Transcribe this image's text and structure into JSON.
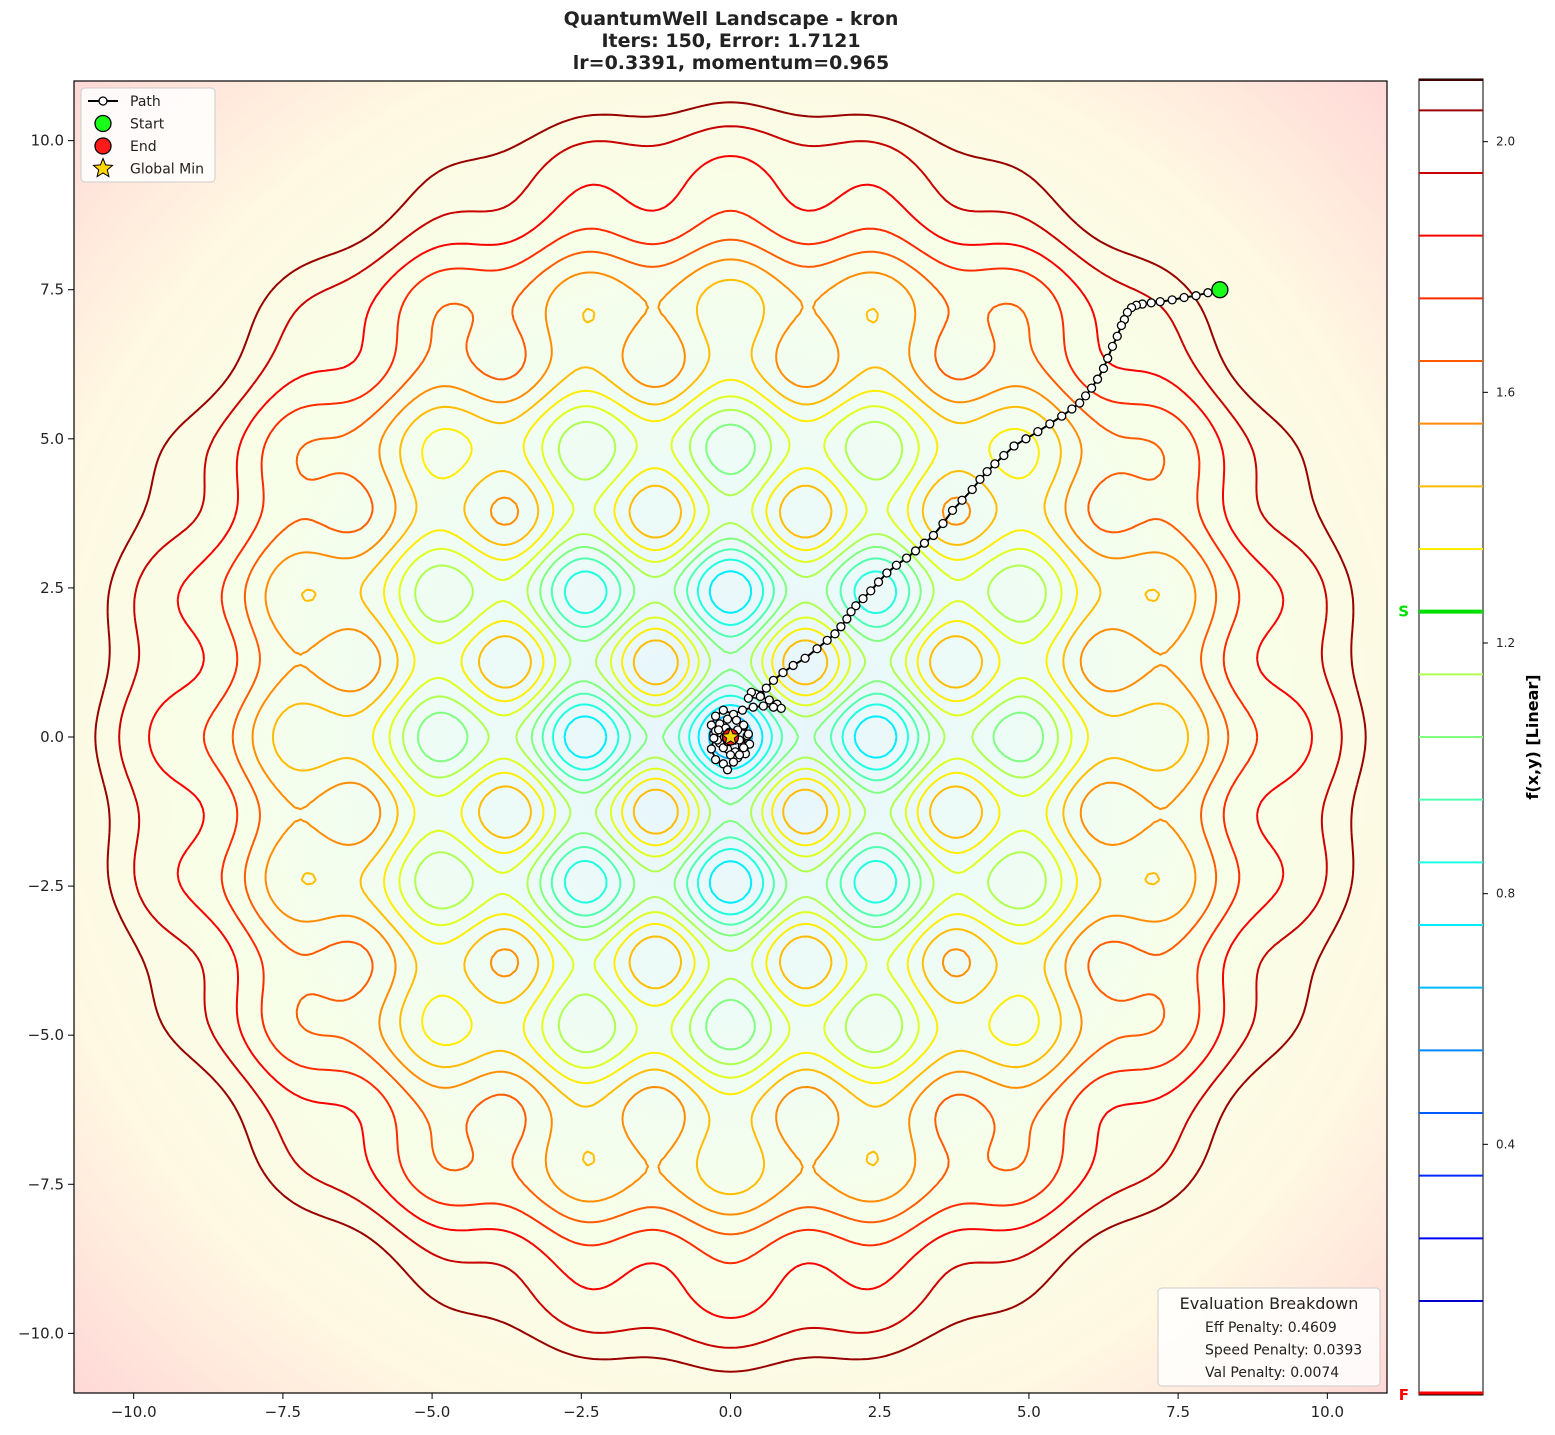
{
  "chart_data": {
    "type": "contour",
    "title_lines": [
      "QuantumWell Landscape - kron",
      "Iters: 150, Error: 1.7121",
      "lr=0.3391, momentum=0.965"
    ],
    "xlim": [
      -11,
      11
    ],
    "ylim": [
      -11,
      11
    ],
    "x_ticks": [
      -10,
      -7.5,
      -5,
      -2.5,
      0,
      2.5,
      5,
      7.5,
      10
    ],
    "y_ticks": [
      -10,
      -7.5,
      -5,
      -2.5,
      0,
      2.5,
      5,
      7.5,
      10
    ],
    "x_tick_labels": [
      "−10.0",
      "−7.5",
      "−5.0",
      "−2.5",
      "0.0",
      "2.5",
      "5.0",
      "7.5",
      "10.0"
    ],
    "y_tick_labels": [
      "−10.0",
      "−7.5",
      "−5.0",
      "−2.5",
      "0.0",
      "2.5",
      "5.0",
      "7.5",
      "10.0"
    ],
    "grid": false,
    "colormap": "jet",
    "colorbar": {
      "label": "f(x,y) [Linear]",
      "range": [
        0.0,
        2.1
      ],
      "ticks": [
        0.4,
        0.8,
        1.2,
        1.6,
        2.0
      ],
      "tick_labels": [
        "0.4",
        "0.8",
        "1.2",
        "1.6",
        "2.0"
      ],
      "start_marker": {
        "label": "S",
        "value": 1.25,
        "color": "#00e000"
      },
      "final_marker": {
        "label": "F",
        "value": 0.0,
        "color": "#ff0000"
      }
    },
    "legend": {
      "placement": "upper-left",
      "entries": [
        {
          "label": "Path",
          "kind": "path"
        },
        {
          "label": "Start",
          "kind": "start"
        },
        {
          "label": "End",
          "kind": "end"
        },
        {
          "label": "Global Min",
          "kind": "star"
        }
      ]
    },
    "start": [
      8.2,
      7.5
    ],
    "end": [
      0.0,
      0.0
    ],
    "global_min": [
      0.0,
      0.0
    ],
    "path": [
      [
        8.2,
        7.5
      ],
      [
        8.0,
        7.45
      ],
      [
        7.8,
        7.4
      ],
      [
        7.6,
        7.37
      ],
      [
        7.4,
        7.33
      ],
      [
        7.2,
        7.3
      ],
      [
        7.05,
        7.28
      ],
      [
        6.9,
        7.26
      ],
      [
        6.8,
        7.24
      ],
      [
        6.72,
        7.2
      ],
      [
        6.65,
        7.12
      ],
      [
        6.6,
        7.0
      ],
      [
        6.55,
        6.9
      ],
      [
        6.48,
        6.72
      ],
      [
        6.4,
        6.55
      ],
      [
        6.32,
        6.35
      ],
      [
        6.25,
        6.18
      ],
      [
        6.15,
        6.0
      ],
      [
        6.05,
        5.85
      ],
      [
        5.95,
        5.72
      ],
      [
        5.85,
        5.6
      ],
      [
        5.72,
        5.5
      ],
      [
        5.55,
        5.38
      ],
      [
        5.35,
        5.25
      ],
      [
        5.15,
        5.12
      ],
      [
        4.95,
        5.0
      ],
      [
        4.75,
        4.88
      ],
      [
        4.58,
        4.72
      ],
      [
        4.43,
        4.58
      ],
      [
        4.3,
        4.45
      ],
      [
        4.18,
        4.32
      ],
      [
        4.05,
        4.15
      ],
      [
        3.88,
        3.97
      ],
      [
        3.72,
        3.8
      ],
      [
        3.56,
        3.58
      ],
      [
        3.4,
        3.38
      ],
      [
        3.25,
        3.25
      ],
      [
        3.1,
        3.12
      ],
      [
        2.95,
        3.0
      ],
      [
        2.78,
        2.88
      ],
      [
        2.62,
        2.75
      ],
      [
        2.48,
        2.6
      ],
      [
        2.35,
        2.45
      ],
      [
        2.22,
        2.32
      ],
      [
        2.1,
        2.2
      ],
      [
        2.02,
        2.1
      ],
      [
        1.95,
        1.98
      ],
      [
        1.85,
        1.85
      ],
      [
        1.75,
        1.73
      ],
      [
        1.62,
        1.62
      ],
      [
        1.45,
        1.48
      ],
      [
        1.25,
        1.32
      ],
      [
        1.05,
        1.2
      ],
      [
        0.88,
        1.08
      ],
      [
        0.72,
        0.95
      ],
      [
        0.6,
        0.82
      ],
      [
        0.5,
        0.7
      ],
      [
        0.42,
        0.72
      ],
      [
        0.35,
        0.75
      ],
      [
        0.3,
        0.65
      ],
      [
        0.5,
        0.68
      ],
      [
        0.65,
        0.62
      ],
      [
        0.78,
        0.55
      ],
      [
        0.85,
        0.48
      ],
      [
        0.72,
        0.5
      ],
      [
        0.55,
        0.52
      ],
      [
        0.38,
        0.5
      ],
      [
        0.2,
        0.45
      ],
      [
        0.05,
        0.38
      ],
      [
        -0.12,
        0.45
      ],
      [
        -0.25,
        0.35
      ],
      [
        -0.32,
        0.2
      ],
      [
        -0.28,
        0.05
      ],
      [
        -0.18,
        -0.1
      ],
      [
        -0.05,
        -0.2
      ],
      [
        0.08,
        -0.25
      ],
      [
        0.2,
        -0.15
      ],
      [
        0.28,
        0.02
      ],
      [
        0.22,
        0.18
      ],
      [
        0.1,
        0.28
      ],
      [
        -0.05,
        0.3
      ],
      [
        -0.18,
        0.22
      ],
      [
        -0.25,
        0.1
      ],
      [
        -0.22,
        -0.05
      ],
      [
        -0.12,
        -0.18
      ],
      [
        0.0,
        -0.3
      ],
      [
        0.12,
        -0.35
      ],
      [
        0.25,
        -0.28
      ],
      [
        0.32,
        -0.12
      ],
      [
        0.3,
        0.05
      ],
      [
        0.22,
        0.2
      ],
      [
        0.12,
        0.12
      ],
      [
        0.05,
        0.05
      ],
      [
        -0.08,
        0.15
      ],
      [
        -0.2,
        0.12
      ],
      [
        -0.28,
        -0.02
      ],
      [
        -0.32,
        -0.2
      ],
      [
        -0.25,
        -0.38
      ],
      [
        -0.12,
        -0.45
      ],
      [
        -0.05,
        -0.55
      ],
      [
        0.05,
        -0.42
      ],
      [
        0.15,
        -0.3
      ],
      [
        0.22,
        -0.18
      ],
      [
        0.15,
        -0.05
      ],
      [
        0.05,
        0.02
      ],
      [
        -0.05,
        -0.08
      ],
      [
        -0.1,
        0.0
      ],
      [
        -0.02,
        0.08
      ],
      [
        0.06,
        0.0
      ],
      [
        0.0,
        -0.05
      ],
      [
        0.0,
        0.0
      ]
    ]
  },
  "eval_box": {
    "title": "Evaluation Breakdown",
    "lines": [
      "Eff Penalty: 0.4609",
      "Speed Penalty: 0.0393",
      "Val Penalty: 0.0074"
    ]
  }
}
